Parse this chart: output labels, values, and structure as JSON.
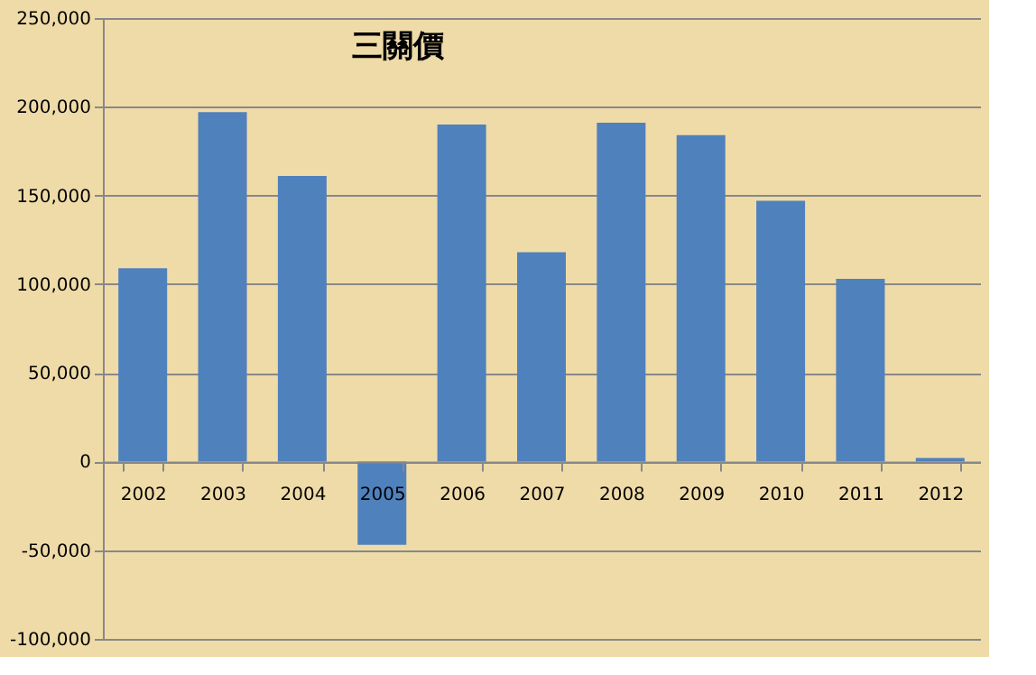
{
  "chart_data": {
    "type": "bar",
    "title": "三關價",
    "categories": [
      "2002",
      "2003",
      "2004",
      "2005",
      "2006",
      "2007",
      "2008",
      "2009",
      "2010",
      "2011",
      "2012"
    ],
    "values": [
      109000,
      197000,
      161000,
      -47000,
      190000,
      118000,
      191000,
      184000,
      147000,
      103000,
      2000
    ],
    "color": "#4f81bd",
    "ylim": [
      -100000,
      250000
    ],
    "yticks": [
      {
        "value": -100000,
        "label": "-100,000"
      },
      {
        "value": -50000,
        "label": "-50,000"
      },
      0,
      {
        "value": 50000,
        "label": "50,000"
      },
      {
        "value": 100000,
        "label": "100,000"
      },
      {
        "value": 150000,
        "label": "150,000"
      },
      {
        "value": 200000,
        "label": "200,000"
      },
      {
        "value": 250000,
        "label": "250,000"
      }
    ],
    "grid": "y"
  }
}
